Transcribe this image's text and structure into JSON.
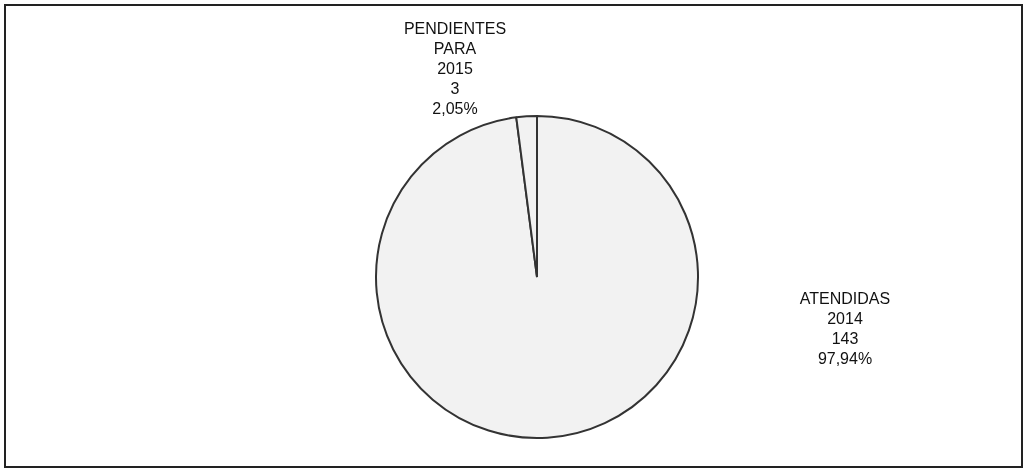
{
  "chart_data": {
    "type": "pie",
    "categories": [
      "ATENDIDAS 2014",
      "PENDIENTES PARA 2015"
    ],
    "values": [
      143,
      3
    ],
    "colors": [
      "#f2f2f2",
      "#f2f2f2"
    ],
    "value_labels": [
      "143\n97,94%",
      "3\n2,05%"
    ],
    "legend": false
  }
}
